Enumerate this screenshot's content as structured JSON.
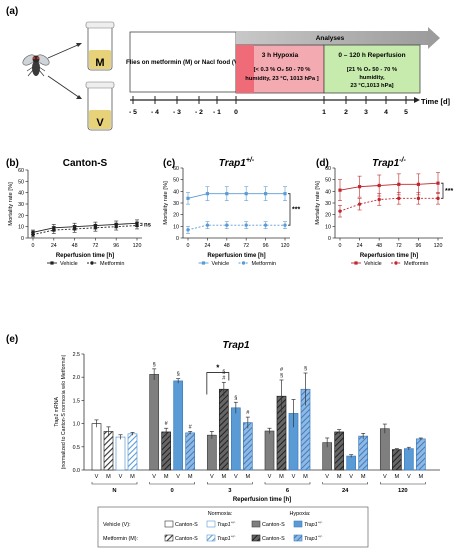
{
  "panel_a": {
    "label": "(a)",
    "flies_text": "Flies on metformin (M) or Nacl food (V)",
    "vial_m": "M",
    "vial_v": "V",
    "analyses": "Analyses",
    "hypoxia_title": "3 h Hypoxia",
    "hypoxia_line1": "[< 0.3 % O₂ 50 - 70 %",
    "hypoxia_line2": "humidity, 23 °C, 1013 hPa ]",
    "rep_title": "0 – 120 h Reperfusion",
    "rep_line1": "[21 % O₂ 50 - 70 %",
    "rep_line2": "humidity,",
    "rep_line3": "23 °C,1013 hPa]",
    "timeline_ticks": [
      "- 5",
      "- 4",
      "- 3",
      "- 2",
      "- 1",
      "0",
      "1",
      "2",
      "3",
      "4",
      "5"
    ],
    "time_label": "Time [d]",
    "colors": {
      "hypoxia": "#f06b78",
      "reperfusion": "#a8df7f",
      "analyses_arrow": "#a6a6a6"
    }
  },
  "chart_data": [
    {
      "id": "b",
      "panel_label": "(b)",
      "type": "line",
      "title": "Canton-S",
      "ylabel": "Mortality rate [%]",
      "xlabel": "Reperfusion time [h]",
      "x": [
        0,
        24,
        48,
        72,
        96,
        120
      ],
      "xticks": [
        "0",
        "24",
        "48",
        "72",
        "96",
        "120"
      ],
      "ylim": [
        0,
        60
      ],
      "yticks": [
        "0",
        "10",
        "20",
        "30",
        "40",
        "50",
        "60"
      ],
      "series": [
        {
          "name": "Vehicle",
          "values": [
            5,
            9,
            10,
            11,
            12,
            13
          ],
          "err": [
            2,
            3,
            3,
            3,
            3,
            3
          ],
          "color": "#222222"
        },
        {
          "name": "Metformin",
          "values": [
            3,
            7,
            8,
            9,
            10,
            11
          ],
          "err": [
            2,
            3,
            3,
            3,
            3,
            3
          ],
          "color": "#222222"
        }
      ],
      "significance": "ns"
    },
    {
      "id": "c",
      "panel_label": "(c)",
      "type": "line",
      "title": "Trap1",
      "title_sup": "+/-",
      "ylabel": "Mortality rate [%]",
      "xlabel": "Reperfusion time [h]",
      "x": [
        0,
        24,
        48,
        72,
        96,
        120
      ],
      "xticks": [
        "0",
        "24",
        "48",
        "72",
        "96",
        "120"
      ],
      "ylim": [
        0,
        60
      ],
      "yticks": [
        "0",
        "10",
        "20",
        "30",
        "40",
        "50",
        "60"
      ],
      "series": [
        {
          "name": "Vehicle",
          "values": [
            34,
            38,
            38,
            38,
            38,
            38
          ],
          "err": [
            5,
            6,
            6,
            6,
            6,
            6
          ],
          "color": "#5b9bd5"
        },
        {
          "name": "Metformin",
          "values": [
            7,
            11,
            11,
            11,
            11,
            11
          ],
          "err": [
            3,
            3,
            3,
            3,
            3,
            3
          ],
          "color": "#5b9bd5"
        }
      ],
      "significance": "***"
    },
    {
      "id": "d",
      "panel_label": "(d)",
      "type": "line",
      "title": "Trap1",
      "title_sup": "-/-",
      "ylabel": "Mortality rate [%]",
      "xlabel": "Reperfusion time [h]",
      "x": [
        0,
        24,
        48,
        72,
        96,
        120
      ],
      "xticks": [
        "0",
        "24",
        "48",
        "72",
        "96",
        "120"
      ],
      "ylim": [
        0,
        60
      ],
      "yticks": [
        "0",
        "10",
        "20",
        "30",
        "40",
        "50",
        "60"
      ],
      "series": [
        {
          "name": "Vehicle",
          "values": [
            41,
            44,
            45,
            46,
            46,
            47
          ],
          "err": [
            9,
            9,
            9,
            9,
            9,
            9
          ],
          "color": "#c0272d"
        },
        {
          "name": "Metformin",
          "values": [
            23,
            29,
            33,
            34,
            34,
            34
          ],
          "err": [
            5,
            5,
            5,
            5,
            5,
            5
          ],
          "color": "#c0272d"
        }
      ],
      "significance": "***"
    },
    {
      "id": "e",
      "panel_label": "(e)",
      "type": "bar",
      "title": "Trap1",
      "ylabel_line1": "Trap1 mRNA",
      "ylabel_line2": "(normalized to Canton-S normoxia w/o Metformin)",
      "xlabel": "Reperfusion time [h]",
      "ylim": [
        0,
        2.5
      ],
      "yticks": [
        "0.0",
        "0.5",
        "1.0",
        "1.5",
        "2.0",
        "2.5"
      ],
      "groups": [
        {
          "label": "N",
          "bars": [
            {
              "cond": "V",
              "value": 1.0,
              "err": 0.08,
              "style": "cs_norm_v",
              "mark": ""
            },
            {
              "cond": "M",
              "value": 0.83,
              "err": 0.1,
              "style": "cs_norm_m",
              "mark": ""
            },
            {
              "cond": "V",
              "value": 0.71,
              "err": 0.05,
              "style": "tr_norm_v",
              "mark": ""
            },
            {
              "cond": "M",
              "value": 0.78,
              "err": 0.03,
              "style": "tr_norm_m",
              "mark": ""
            }
          ]
        },
        {
          "label": "0",
          "bars": [
            {
              "cond": "V",
              "value": 2.06,
              "err": 0.12,
              "style": "cs_hyp_v",
              "mark": "§"
            },
            {
              "cond": "M",
              "value": 0.82,
              "err": 0.08,
              "style": "cs_hyp_m",
              "mark": "#"
            },
            {
              "cond": "V",
              "value": 1.92,
              "err": 0.05,
              "style": "tr_hyp_v",
              "mark": "§"
            },
            {
              "cond": "M",
              "value": 0.8,
              "err": 0.03,
              "style": "tr_hyp_m",
              "mark": "#"
            }
          ]
        },
        {
          "label": "3",
          "bars": [
            {
              "cond": "V",
              "value": 0.75,
              "err": 0.08,
              "style": "cs_hyp_v",
              "mark": ""
            },
            {
              "cond": "M",
              "value": 1.74,
              "err": 0.15,
              "style": "cs_hyp_m",
              "mark": "§\n#"
            },
            {
              "cond": "V",
              "value": 1.34,
              "err": 0.12,
              "style": "tr_hyp_v",
              "mark": "§"
            },
            {
              "cond": "M",
              "value": 1.02,
              "err": 0.12,
              "style": "tr_hyp_m",
              "mark": "#"
            }
          ]
        },
        {
          "label": "6",
          "bars": [
            {
              "cond": "V",
              "value": 0.84,
              "err": 0.06,
              "style": "cs_hyp_v",
              "mark": ""
            },
            {
              "cond": "M",
              "value": 1.59,
              "err": 0.35,
              "style": "cs_hyp_m",
              "mark": "#\n§"
            },
            {
              "cond": "V",
              "value": 1.22,
              "err": 0.3,
              "style": "tr_hyp_v",
              "mark": ""
            },
            {
              "cond": "M",
              "value": 1.74,
              "err": 0.35,
              "style": "tr_hyp_m",
              "mark": "§"
            }
          ]
        },
        {
          "label": "24",
          "bars": [
            {
              "cond": "V",
              "value": 0.59,
              "err": 0.1,
              "style": "cs_hyp_v",
              "mark": ""
            },
            {
              "cond": "M",
              "value": 0.82,
              "err": 0.05,
              "style": "cs_hyp_m",
              "mark": ""
            },
            {
              "cond": "V",
              "value": 0.3,
              "err": 0.03,
              "style": "tr_hyp_v",
              "mark": ""
            },
            {
              "cond": "M",
              "value": 0.73,
              "err": 0.06,
              "style": "tr_hyp_m",
              "mark": ""
            }
          ]
        },
        {
          "label": "120",
          "bars": [
            {
              "cond": "V",
              "value": 0.89,
              "err": 0.1,
              "style": "cs_hyp_v",
              "mark": ""
            },
            {
              "cond": "M",
              "value": 0.44,
              "err": 0.02,
              "style": "cs_hyp_m",
              "mark": ""
            },
            {
              "cond": "V",
              "value": 0.46,
              "err": 0.03,
              "style": "tr_hyp_v",
              "mark": ""
            },
            {
              "cond": "M",
              "value": 0.67,
              "err": 0.02,
              "style": "tr_hyp_m",
              "mark": ""
            }
          ]
        }
      ],
      "bracket_mark": "*",
      "legend": {
        "normoxia_heading": "Normoxia:",
        "hypoxia_heading": "Hypoxia:",
        "vehicle_label": "Vehicle (V):",
        "metformin_label": "Metformin (M):",
        "canton": "Canton-S",
        "trap1": "Trap1",
        "trap1_sup": "+/-"
      }
    }
  ]
}
